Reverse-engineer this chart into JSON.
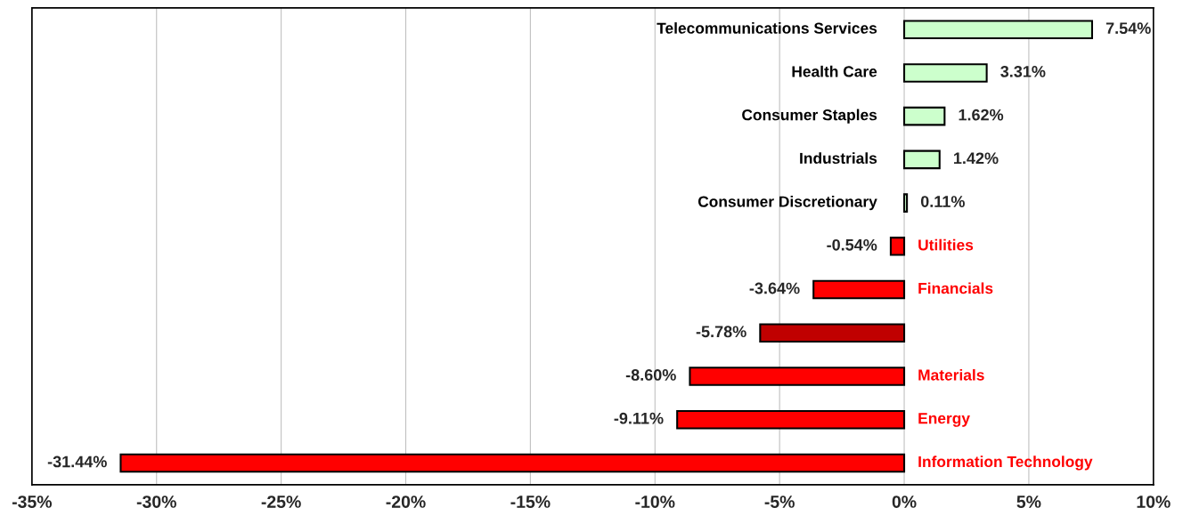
{
  "chart_data": {
    "type": "bar",
    "orientation": "horizontal",
    "categories": [
      "Telecommunications Services",
      "Health Care",
      "Consumer Staples",
      "Industrials",
      "Consumer Discretionary",
      "Utilities",
      "Financials",
      null,
      "Materials",
      "Energy",
      "Information Technology"
    ],
    "values": [
      7.54,
      3.31,
      1.62,
      1.42,
      0.11,
      -0.54,
      -3.64,
      -5.78,
      -8.6,
      -9.11,
      -31.44
    ],
    "value_labels": [
      "7.54%",
      "3.31%",
      "1.62%",
      "1.42%",
      "0.11%",
      "-0.54%",
      "-3.64%",
      "-5.78%",
      "-8.60%",
      "-9.11%",
      "-31.44%"
    ],
    "colors": [
      "#ccffcc",
      "#ccffcc",
      "#ccffcc",
      "#ccffcc",
      "#ccffcc",
      "#ff0000",
      "#ff0000",
      "#c00000",
      "#ff0000",
      "#ff0000",
      "#ff0000"
    ],
    "xlim": [
      -35,
      10
    ],
    "xticks": [
      {
        "value": -35,
        "label": "-35%"
      },
      {
        "value": -30,
        "label": "-30%"
      },
      {
        "value": -25,
        "label": "-25%"
      },
      {
        "value": -20,
        "label": "-20%"
      },
      {
        "value": -15,
        "label": "-15%"
      },
      {
        "value": -10,
        "label": "-10%"
      },
      {
        "value": -5,
        "label": "-5%"
      },
      {
        "value": 0,
        "label": "0%"
      },
      {
        "value": 5,
        "label": "5%"
      },
      {
        "value": 10,
        "label": "10%"
      }
    ],
    "grid": "x",
    "tick_labels": "x",
    "legend": false
  }
}
